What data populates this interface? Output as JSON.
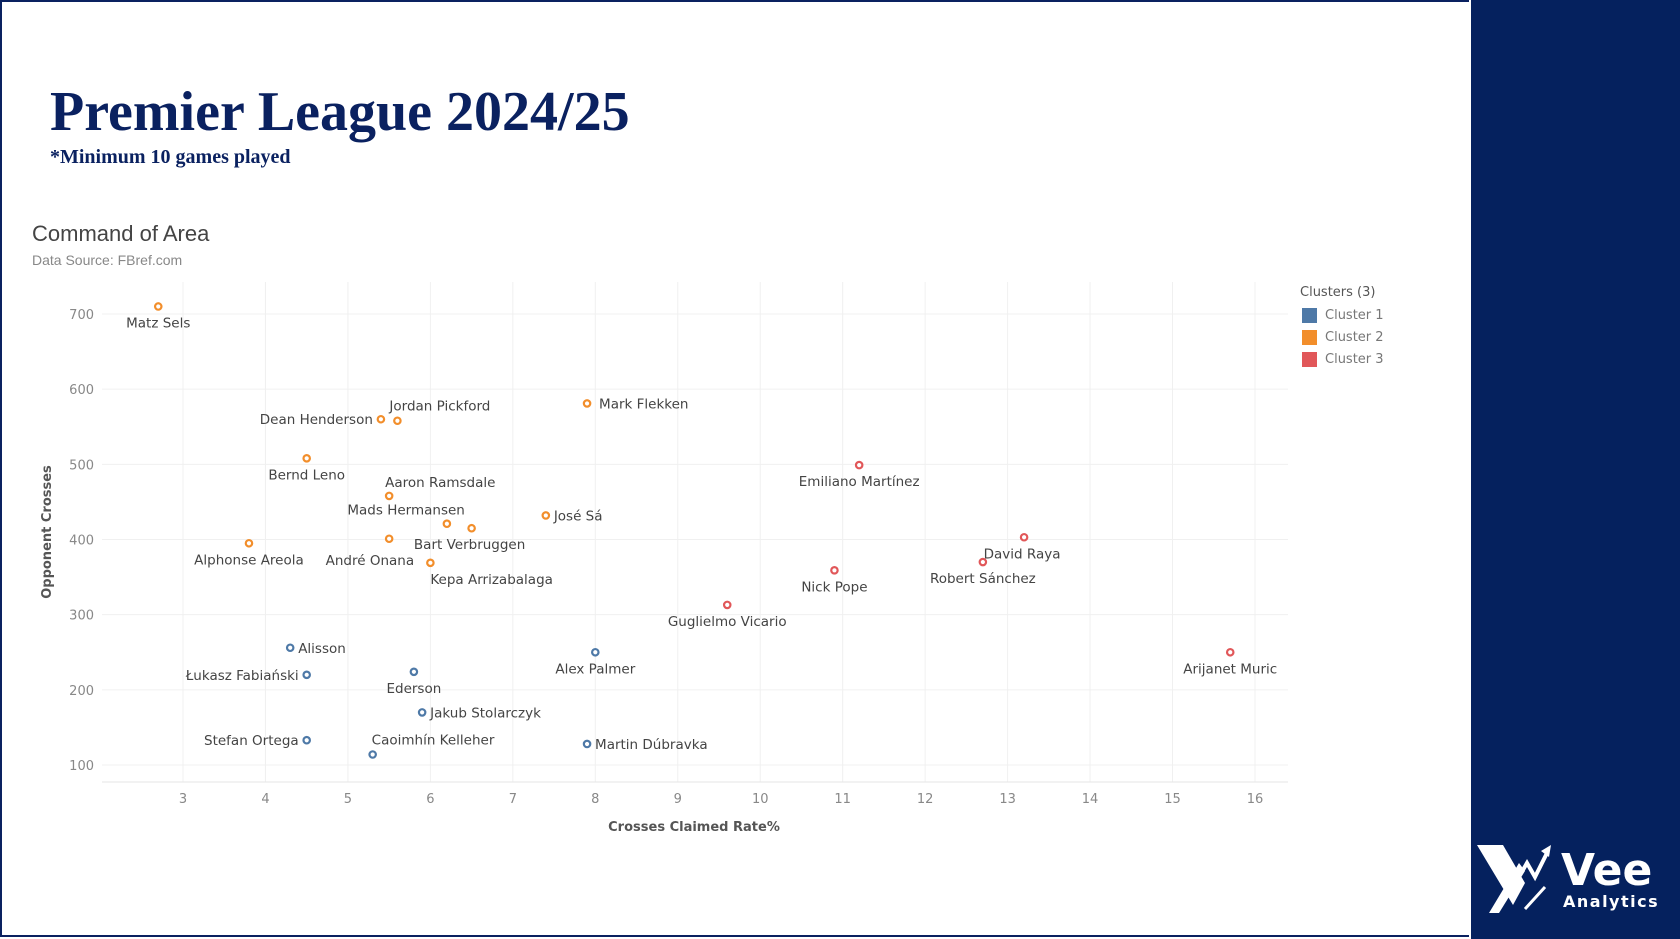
{
  "header": {
    "title": "Premier League 2024/25",
    "subtitle": "*Minimum 10 games played"
  },
  "logo": {
    "name": "Vee",
    "tagline": "Analytics"
  },
  "colors": {
    "navy": "#0a2160",
    "cluster1": "#4e79a7",
    "cluster2": "#f28e2b",
    "cluster3": "#e15759"
  },
  "chart_data": {
    "type": "scatter",
    "title": "Command of Area",
    "subtitle": "Data Source: FBref.com",
    "xlabel": "Crosses Claimed Rate%",
    "ylabel": "Opponent Crosses",
    "xlim": [
      2.0,
      16.4
    ],
    "ylim": [
      80,
      740
    ],
    "xticks": [
      3,
      4,
      5,
      6,
      7,
      8,
      9,
      10,
      11,
      12,
      13,
      14,
      15,
      16
    ],
    "yticks": [
      100,
      200,
      300,
      400,
      500,
      600,
      700
    ],
    "grid": true,
    "legend": {
      "title": "Clusters (3)",
      "position": "right",
      "items": [
        {
          "label": "Cluster 1",
          "color": "#4e79a7"
        },
        {
          "label": "Cluster 2",
          "color": "#f28e2b"
        },
        {
          "label": "Cluster 3",
          "color": "#e15759"
        }
      ]
    },
    "points": [
      {
        "name": "Matz Sels",
        "x": 2.7,
        "y": 710,
        "cluster": 2
      },
      {
        "name": "Jordan Pickford",
        "x": 5.6,
        "y": 558,
        "cluster": 2
      },
      {
        "name": "Dean Henderson",
        "x": 5.4,
        "y": 560,
        "cluster": 2
      },
      {
        "name": "Mark Flekken",
        "x": 7.9,
        "y": 581,
        "cluster": 2
      },
      {
        "name": "Bernd Leno",
        "x": 4.5,
        "y": 508,
        "cluster": 2
      },
      {
        "name": "Aaron Ramsdale",
        "x": 5.5,
        "y": 458,
        "cluster": 2
      },
      {
        "name": "Mads Hermansen",
        "x": 6.2,
        "y": 421,
        "cluster": 2
      },
      {
        "name": "Bart Verbruggen",
        "x": 6.5,
        "y": 415,
        "cluster": 2
      },
      {
        "name": "José Sá",
        "x": 7.4,
        "y": 432,
        "cluster": 2
      },
      {
        "name": "Alphonse Areola",
        "x": 3.8,
        "y": 395,
        "cluster": 2
      },
      {
        "name": "André Onana",
        "x": 5.5,
        "y": 401,
        "cluster": 2
      },
      {
        "name": "Kepa Arrizabalaga",
        "x": 6.0,
        "y": 369,
        "cluster": 2
      },
      {
        "name": "Emiliano Martínez",
        "x": 11.2,
        "y": 499,
        "cluster": 3
      },
      {
        "name": "David Raya",
        "x": 13.2,
        "y": 403,
        "cluster": 3
      },
      {
        "name": "Robert Sánchez",
        "x": 12.7,
        "y": 370,
        "cluster": 3
      },
      {
        "name": "Nick Pope",
        "x": 10.9,
        "y": 359,
        "cluster": 3
      },
      {
        "name": "Guglielmo Vicario",
        "x": 9.6,
        "y": 313,
        "cluster": 3
      },
      {
        "name": "Arijanet Muric",
        "x": 15.7,
        "y": 250,
        "cluster": 3
      },
      {
        "name": "Alisson",
        "x": 4.3,
        "y": 256,
        "cluster": 1
      },
      {
        "name": "Łukasz Fabiański",
        "x": 4.5,
        "y": 220,
        "cluster": 1
      },
      {
        "name": "Ederson",
        "x": 5.8,
        "y": 224,
        "cluster": 1
      },
      {
        "name": "Alex Palmer",
        "x": 8.0,
        "y": 250,
        "cluster": 1
      },
      {
        "name": "Jakub Stolarczyk",
        "x": 5.9,
        "y": 170,
        "cluster": 1
      },
      {
        "name": "Stefan Ortega",
        "x": 4.5,
        "y": 133,
        "cluster": 1
      },
      {
        "name": "Caoimhín Kelleher",
        "x": 5.3,
        "y": 114,
        "cluster": 1
      },
      {
        "name": "Martin Dúbravka",
        "x": 7.9,
        "y": 128,
        "cluster": 1
      }
    ]
  }
}
